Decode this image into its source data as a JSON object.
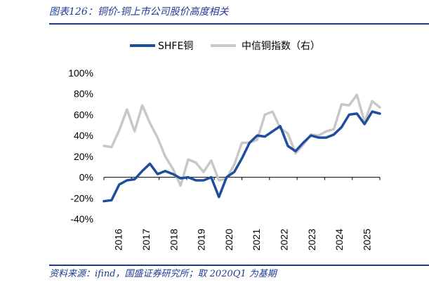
{
  "header": {
    "title": "图表126：铜价-铜上市公司股价高度相关"
  },
  "footer": {
    "source": "资料来源：ifind，国盛证券研究所；取 2020Q1 为基期"
  },
  "chart_data": {
    "type": "line",
    "x_tick_labels": [
      "2016",
      "2017",
      "2018",
      "2019",
      "2020",
      "2021",
      "2022",
      "2023",
      "2024",
      "2025"
    ],
    "y_tick_labels": [
      "100%",
      "80%",
      "60%",
      "40%",
      "20%",
      "0%",
      "-20%",
      "-40%"
    ],
    "ylim": [
      -40,
      100
    ],
    "legend_position": "top",
    "series": [
      {
        "name": "SHFE铜",
        "color": "#1f4e9c",
        "values": [
          -23,
          -22,
          -7,
          -3,
          -2,
          6,
          13,
          3,
          6,
          3,
          -1,
          0,
          -3,
          -3,
          0,
          -19,
          0,
          5,
          18,
          33,
          40,
          39,
          44,
          49,
          30,
          25,
          33,
          40,
          38,
          38,
          41,
          48,
          60,
          61,
          51,
          63,
          61
        ]
      },
      {
        "name": "中信铜指数（右）",
        "color": "#c8c8c8",
        "values": [
          30,
          29,
          45,
          65,
          44,
          69,
          52,
          38,
          20,
          8,
          -8,
          17,
          14,
          5,
          16,
          -3,
          -1,
          12,
          33,
          33,
          36,
          60,
          63,
          47,
          42,
          23,
          31,
          41,
          40,
          44,
          46,
          70,
          69,
          79,
          53,
          73,
          67
        ]
      }
    ]
  }
}
